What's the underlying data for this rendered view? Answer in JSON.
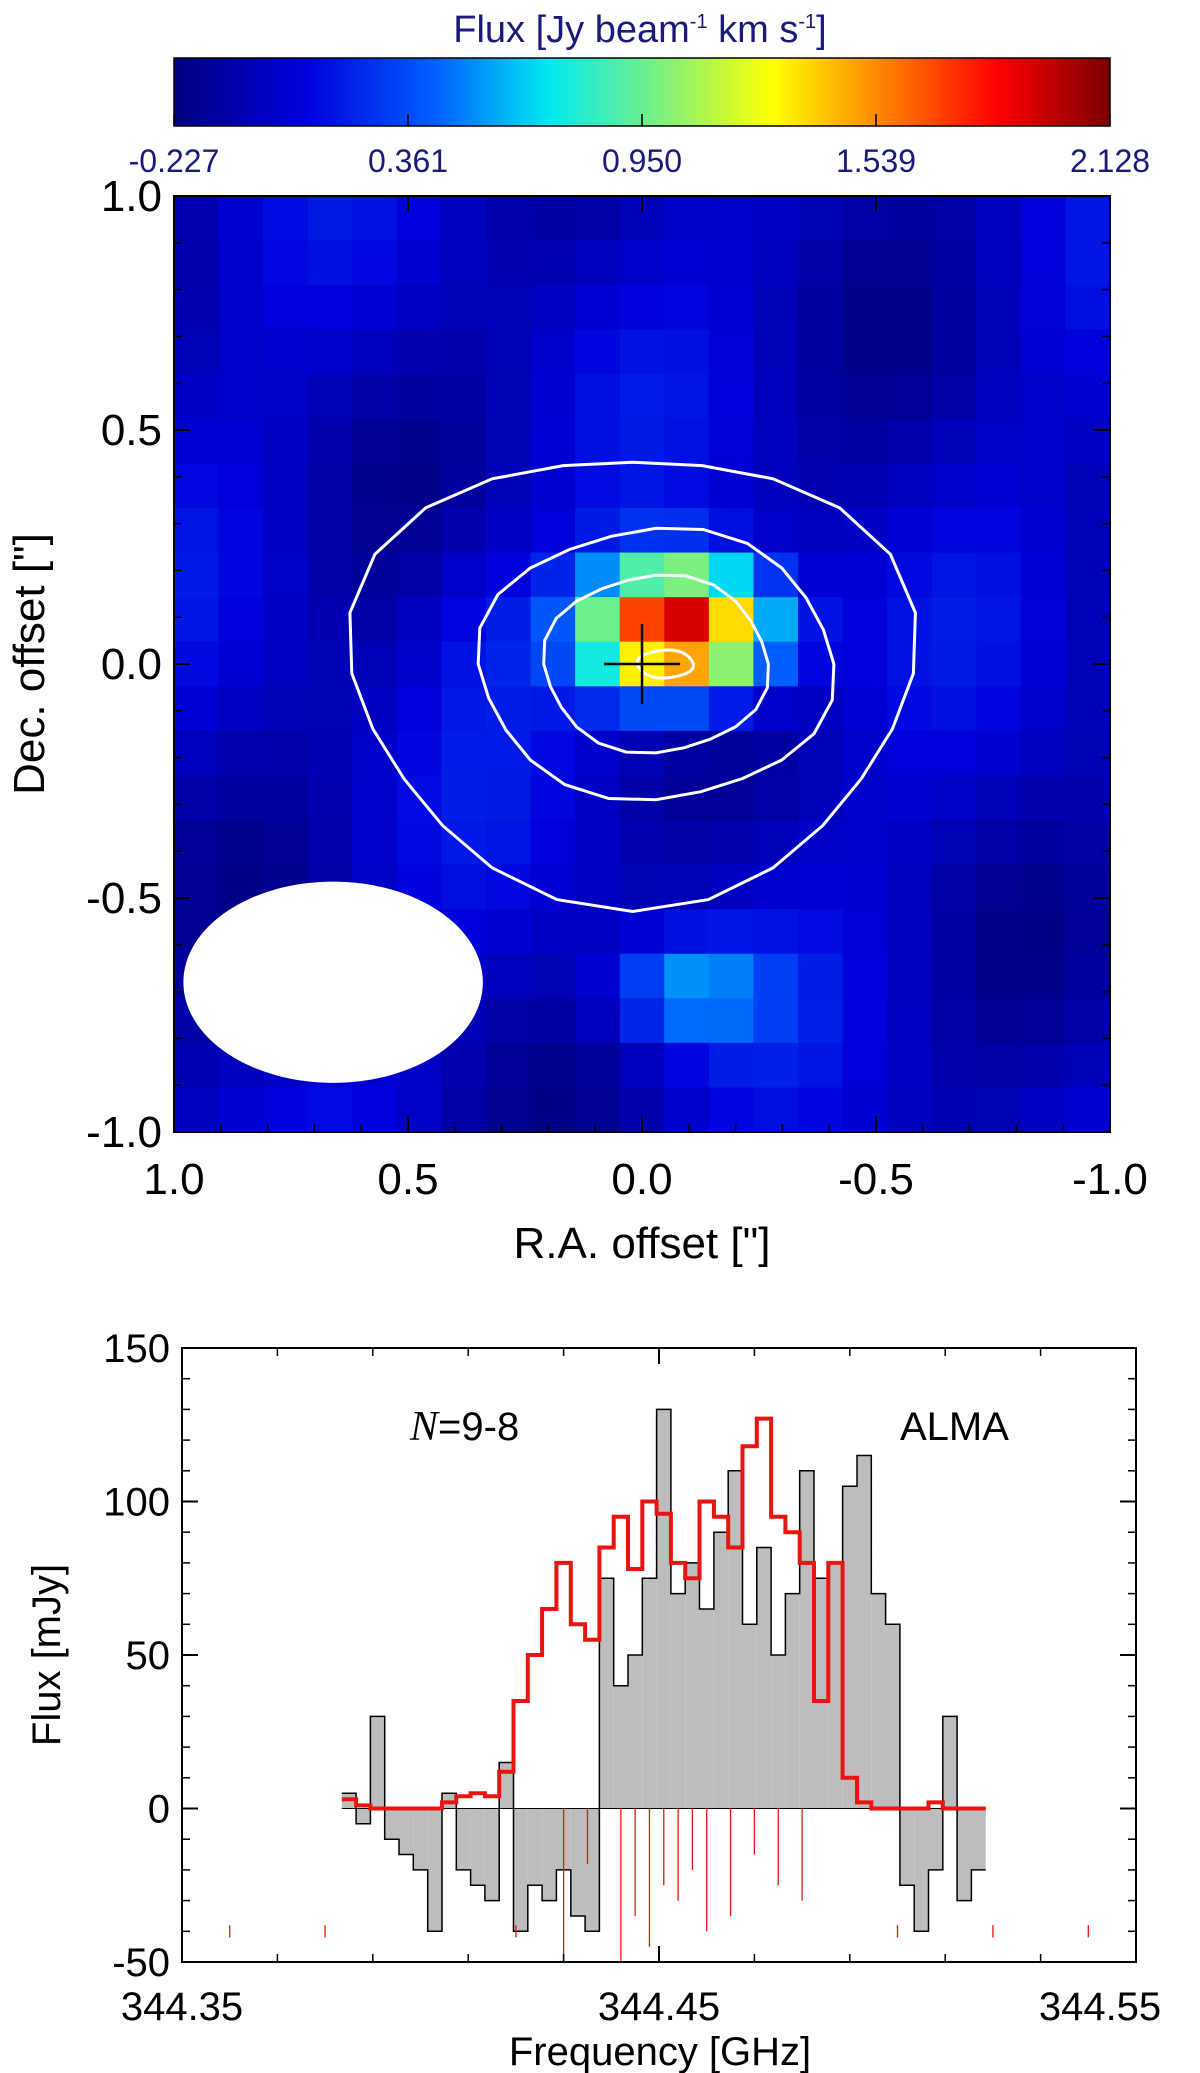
{
  "chart_data": [
    {
      "type": "heatmap",
      "colorbar": {
        "title": "Flux [Jy beam⁻¹ km s⁻¹]",
        "title_parts": [
          "Flux [Jy beam",
          "-1",
          " km s",
          "-1",
          "]"
        ],
        "ticks": [
          "-0.227",
          "0.361",
          "0.950",
          "1.539",
          "2.128"
        ],
        "range": [
          -0.227,
          2.128
        ],
        "colormap": "rainbow (dark blue → cyan → yellow → red → dark red)"
      },
      "xlabel": "R.A. offset [\"]",
      "ylabel": "Dec. offset [\"]",
      "xlim": [
        1.0,
        -1.0
      ],
      "ylim": [
        -1.0,
        1.0
      ],
      "x_ticks": [
        "1.0",
        "0.5",
        "0.0",
        "-0.5",
        "-1.0"
      ],
      "y_ticks": [
        "1.0",
        "0.5",
        "0.0",
        "-0.5",
        "-1.0"
      ],
      "grid_size": 21,
      "pixel_size_arcsec": 0.1,
      "peak": {
        "ra": -0.08,
        "dec": 0.07,
        "value": 2.1
      },
      "contour_levels_fraction_of_peak": [
        0.25,
        0.5,
        0.75,
        0.97
      ],
      "marker": {
        "type": "cross",
        "ra": 0.0,
        "dec": 0.0
      },
      "beam": {
        "ra": 0.66,
        "dec": -0.68,
        "major_arcsec": 0.64,
        "minor_arcsec": 0.43,
        "pa_deg": 90,
        "color": "#ffffff"
      },
      "contour_color": "#ffffff"
    },
    {
      "type": "area",
      "xlabel": "Frequency [GHz]",
      "ylabel": "Flux [mJy]",
      "xlim": [
        344.35,
        344.55
      ],
      "ylim": [
        -50,
        150
      ],
      "x_ticks": [
        "344.35",
        "344.45",
        "344.55"
      ],
      "y_ticks": [
        "150",
        "100",
        "50",
        "0",
        "-50"
      ],
      "annotations": {
        "transition_prefix": "N",
        "transition_suffix": "=9-8",
        "instrument": "ALMA"
      },
      "series": [
        {
          "style": "step histogram, grey fill",
          "color": "#bdbdbd",
          "x": [
            344.385,
            344.388,
            344.391,
            344.394,
            344.397,
            344.4,
            344.403,
            344.406,
            344.409,
            344.412,
            344.415,
            344.418,
            344.421,
            344.424,
            344.427,
            344.43,
            344.433,
            344.436,
            344.439,
            344.442,
            344.445,
            344.448,
            344.451,
            344.454,
            344.457,
            344.46,
            344.463,
            344.466,
            344.469,
            344.472,
            344.475,
            344.478,
            344.481,
            344.484,
            344.487,
            344.49,
            344.493,
            344.496,
            344.499,
            344.502,
            344.505,
            344.508,
            344.511,
            344.514,
            344.517
          ],
          "values": [
            5,
            -5,
            30,
            -10,
            -15,
            -20,
            -40,
            5,
            -20,
            -25,
            -30,
            15,
            -40,
            -25,
            -30,
            -20,
            -35,
            -40,
            75,
            40,
            50,
            75,
            130,
            70,
            80,
            65,
            90,
            110,
            60,
            85,
            50,
            70,
            110,
            75,
            80,
            105,
            115,
            70,
            60,
            -25,
            -40,
            -20,
            30,
            -30,
            -20
          ]
        },
        {
          "style": "step line",
          "color": "#e8140f",
          "x": [
            344.385,
            344.388,
            344.391,
            344.394,
            344.397,
            344.4,
            344.403,
            344.406,
            344.409,
            344.412,
            344.415,
            344.418,
            344.421,
            344.424,
            344.427,
            344.43,
            344.433,
            344.436,
            344.439,
            344.442,
            344.445,
            344.448,
            344.451,
            344.454,
            344.457,
            344.46,
            344.463,
            344.466,
            344.469,
            344.472,
            344.475,
            344.478,
            344.481,
            344.484,
            344.487,
            344.49,
            344.493,
            344.496,
            344.499,
            344.502,
            344.505,
            344.508,
            344.511,
            344.514,
            344.517
          ],
          "values": [
            3,
            1,
            0,
            0,
            0,
            0,
            0,
            2,
            4,
            5,
            4,
            12,
            35,
            50,
            65,
            80,
            60,
            55,
            85,
            95,
            78,
            100,
            96,
            80,
            75,
            100,
            95,
            85,
            118,
            127,
            95,
            90,
            80,
            35,
            80,
            10,
            2,
            0,
            0,
            0,
            0,
            2,
            0,
            0,
            0
          ]
        }
      ],
      "hyperfine_lines": {
        "color": "#e8140f",
        "x": [
          344.43,
          344.435,
          344.442,
          344.445,
          344.448,
          344.451,
          344.454,
          344.457,
          344.46,
          344.465,
          344.47,
          344.475,
          344.48
        ],
        "heights": [
          -50,
          -18,
          -50,
          -35,
          -45,
          -25,
          -30,
          -20,
          -40,
          -35,
          -15,
          -25,
          -30
        ]
      },
      "minor_lines_x": [
        344.36,
        344.38,
        344.42,
        344.5,
        344.52,
        344.54
      ]
    }
  ]
}
